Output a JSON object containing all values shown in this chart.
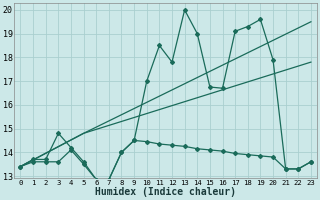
{
  "xlabel": "Humidex (Indice chaleur)",
  "bg_color": "#cce8e8",
  "grid_color": "#aacfcf",
  "line_color": "#1a6b5a",
  "xlim": [
    -0.5,
    23.5
  ],
  "ylim": [
    12.9,
    20.3
  ],
  "xticks": [
    0,
    1,
    2,
    3,
    4,
    5,
    6,
    7,
    8,
    9,
    10,
    11,
    12,
    13,
    14,
    15,
    16,
    17,
    18,
    19,
    20,
    21,
    22,
    23
  ],
  "yticks": [
    13,
    14,
    15,
    16,
    17,
    18,
    19,
    20
  ],
  "s_flat_x": [
    0,
    1,
    2,
    3,
    4,
    5,
    6,
    7,
    8,
    9,
    10,
    11,
    12,
    13,
    14,
    15,
    16,
    17,
    18,
    19,
    20,
    21,
    22,
    23
  ],
  "s_flat_y": [
    13.4,
    13.6,
    13.6,
    13.6,
    14.1,
    13.5,
    12.85,
    12.85,
    14.0,
    14.5,
    14.45,
    14.35,
    14.3,
    14.25,
    14.15,
    14.1,
    14.05,
    13.95,
    13.9,
    13.85,
    13.8,
    13.3,
    13.3,
    13.6
  ],
  "s_zigzag_x": [
    0,
    1,
    2,
    3,
    4,
    5,
    6,
    7,
    8,
    9,
    10,
    11,
    12,
    13,
    14,
    15,
    16,
    17,
    18,
    19,
    20,
    21,
    22,
    23
  ],
  "s_zigzag_y": [
    13.4,
    13.7,
    13.7,
    14.8,
    14.2,
    13.6,
    12.85,
    12.85,
    14.0,
    14.5,
    17.0,
    18.5,
    17.8,
    20.0,
    19.0,
    16.75,
    16.7,
    19.1,
    19.3,
    19.6,
    17.9,
    13.3,
    13.3,
    13.6
  ],
  "trend1_x": [
    0,
    5,
    23
  ],
  "trend1_y": [
    13.4,
    14.8,
    19.5
  ],
  "trend2_x": [
    0,
    5,
    23
  ],
  "trend2_y": [
    13.4,
    14.8,
    17.8
  ]
}
